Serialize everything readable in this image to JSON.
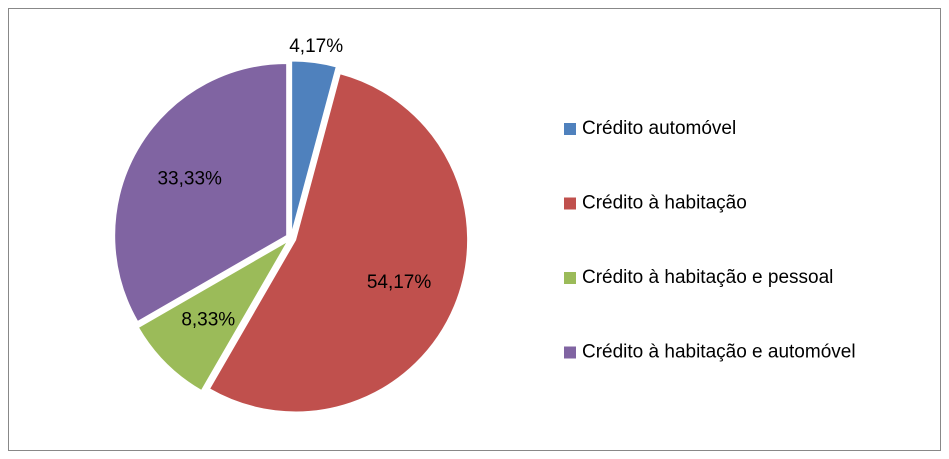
{
  "chart_data": {
    "type": "pie",
    "categories": [
      "Crédito automóvel",
      "Crédito à habitação",
      "Crédito à habitação e pessoal",
      "Crédito à habitação e automóvel"
    ],
    "values": [
      4.17,
      54.17,
      8.33,
      33.33
    ],
    "value_labels": [
      "4,17%",
      "54,17%",
      "8,33%",
      "33,33%"
    ],
    "colors": [
      "#4f81bd",
      "#c0504d",
      "#9bbb59",
      "#8064a2"
    ],
    "legend": "right"
  }
}
